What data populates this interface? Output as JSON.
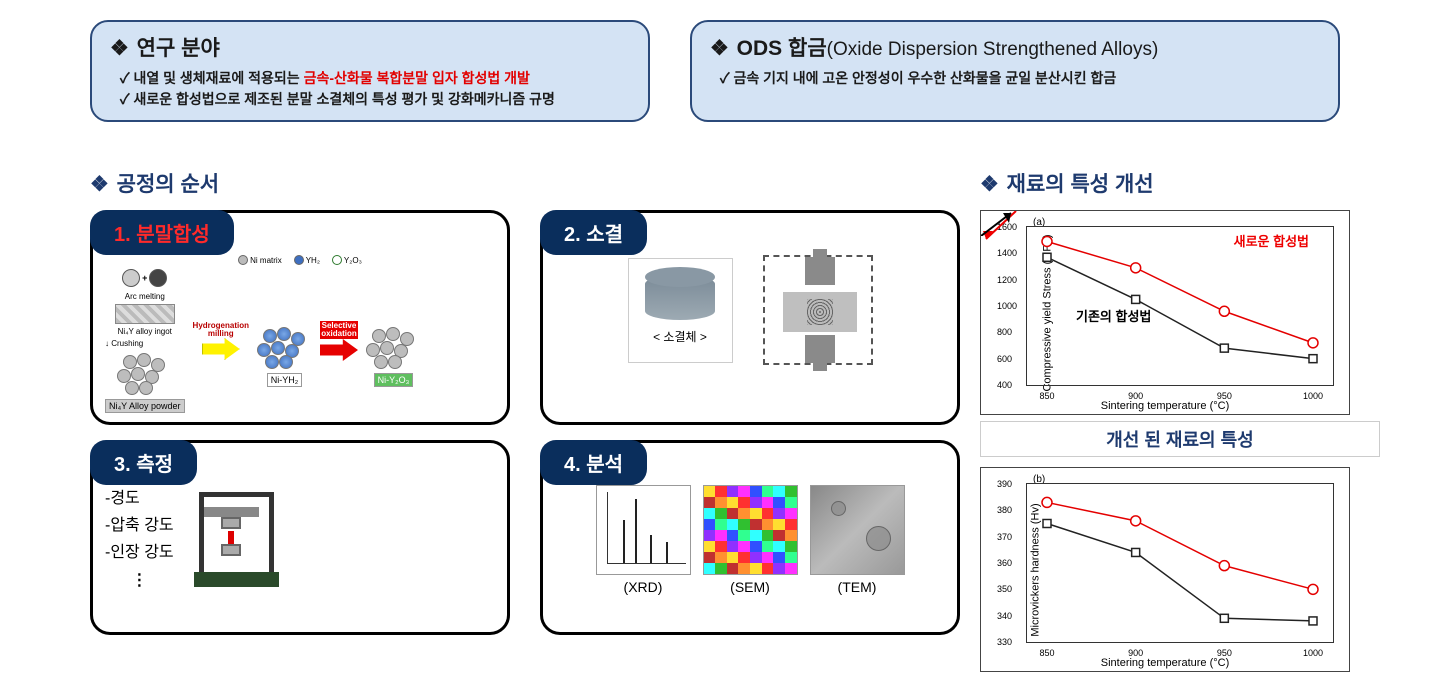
{
  "top": {
    "research": {
      "title": "연구 분야",
      "bullet1_plain": "내열 및 생체재료에 적용되는 ",
      "bullet1_red": "금속-산화물 복합분말 입자 합성법 개발",
      "bullet2_a": "새로운 합성법으로 제조된 분말 소결체의 특성 평가 및  ",
      "bullet2_b": "강화메카니즘 규명"
    },
    "ods": {
      "title_strong": "ODS 합금",
      "title_sub": "(Oxide Dispersion Strengthened Alloys)",
      "bullet": "금속 기지 내에 고온 안정성이 우수한 산화물을 균일 분산시킨 합금"
    }
  },
  "process_title": "공정의 순서",
  "improve_title": "재료의 특성 개선",
  "cards": {
    "c1": {
      "tag": "1. 분말합성",
      "arc": "Arc melting",
      "ingot": "Ni₄Y alloy ingot",
      "crushing": "Crushing",
      "arrow1a": "Hydrogenation",
      "arrow1b": "milling",
      "arrow2a": "Selective",
      "arrow2b": "oxidation",
      "stage1": "Ni₄Y Alloy powder",
      "stage2": "Ni-YH₂",
      "stage3": "Ni-Y₂O₃",
      "legend_ni": "Ni matrix",
      "legend_yh2": "YH₂",
      "legend_y2o3": "Y₂O₃"
    },
    "c2": {
      "tag": "2. 소결",
      "pellet": "< 소결체 >"
    },
    "c3": {
      "tag": "3. 측정",
      "m1": "-경도",
      "m2": "-압축 강도",
      "m3": "-인장 강도",
      "m4": "⋮"
    },
    "c4": {
      "tag": "4. 분석",
      "xrd": "(XRD)",
      "sem": "(SEM)",
      "tem": "(TEM)"
    }
  },
  "charts": {
    "a": {
      "type": "line",
      "corner": "(a)",
      "ylabel": "Compressive yield Stress (MPa)",
      "xlabel": "Sintering temperature (°C)",
      "ylim": [
        400,
        1600
      ],
      "ytick_step": 200,
      "xvals": [
        850,
        900,
        950,
        1000
      ],
      "series_new": {
        "label": "새로운 합성법",
        "color": "#e40000",
        "marker": "circle-open",
        "values": [
          1490,
          1290,
          960,
          720
        ]
      },
      "series_old": {
        "label": "기존의 합성법",
        "color": "#222222",
        "marker": "square-open",
        "values": [
          1370,
          1050,
          680,
          600
        ]
      }
    },
    "improved_label": "개선 된 재료의 특성",
    "b": {
      "type": "line",
      "corner": "(b)",
      "ylabel": "Microvickers hardness (Hv)",
      "xlabel": "Sintering temperature (°C)",
      "ylim": [
        330,
        390
      ],
      "ytick_step": 10,
      "xvals": [
        850,
        900,
        950,
        1000
      ],
      "series_new": {
        "color": "#e40000",
        "marker": "circle-open",
        "values": [
          383,
          376,
          359,
          350
        ]
      },
      "series_old": {
        "color": "#222222",
        "marker": "square-open",
        "values": [
          375,
          364,
          339,
          338
        ]
      }
    }
  },
  "styling": {
    "info_bg": "#d4e3f4",
    "info_border": "#2b4a7a",
    "tag_bg": "#0a2e5c",
    "accent_red": "#e20000",
    "title_color": "#1e3a6e"
  },
  "sem_colors": [
    "#ff3030",
    "#3050ff",
    "#30c030",
    "#ffde30",
    "#ff30ff",
    "#30ffff",
    "#ff9030",
    "#9030ff",
    "#30ff90",
    "#c03030"
  ]
}
